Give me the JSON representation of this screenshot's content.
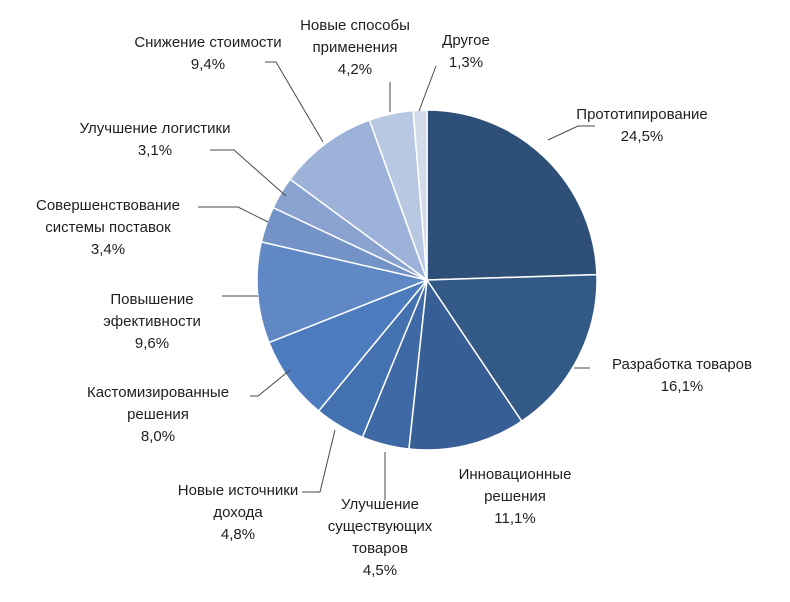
{
  "chart_data": {
    "type": "pie",
    "title": "",
    "start_angle_deg": 0,
    "direction": "clockwise",
    "slices": [
      {
        "label": "Прототипирование",
        "value_label": "24,5%",
        "value": 24.5,
        "color": "#2e5078"
      },
      {
        "label": "Разработка товаров",
        "value_label": "16,1%",
        "value": 16.1,
        "color": "#335987"
      },
      {
        "label": "Инновационные решения",
        "value_label": "11,1%",
        "value": 11.1,
        "color": "#385f95"
      },
      {
        "label": "Улучшение существующих товаров",
        "value_label": "4,5%",
        "value": 4.5,
        "color": "#3e69a4"
      },
      {
        "label": "Новые источники дохода",
        "value_label": "4,8%",
        "value": 4.8,
        "color": "#4472b0"
      },
      {
        "label": "Кастомизированные решения",
        "value_label": "8,0%",
        "value": 8.0,
        "color": "#4c7cbe"
      },
      {
        "label": "Повышение эфективности",
        "value_label": "9,6%",
        "value": 9.6,
        "color": "#6088c4"
      },
      {
        "label": "Совершенствование системы поставок",
        "value_label": "3,4%",
        "value": 3.4,
        "color": "#7393c6"
      },
      {
        "label": "Улучшение логистики",
        "value_label": "3,1%",
        "value": 3.1,
        "color": "#8aa2cf"
      },
      {
        "label": "Снижение стоимости",
        "value_label": "9,4%",
        "value": 9.4,
        "color": "#9db2d8"
      },
      {
        "label": "Новые способы применения",
        "value_label": "4,2%",
        "value": 4.2,
        "color": "#b8c8e3"
      },
      {
        "label": "Другое",
        "value_label": "1,3%",
        "value": 1.3,
        "color": "#d4dcec"
      }
    ]
  }
}
